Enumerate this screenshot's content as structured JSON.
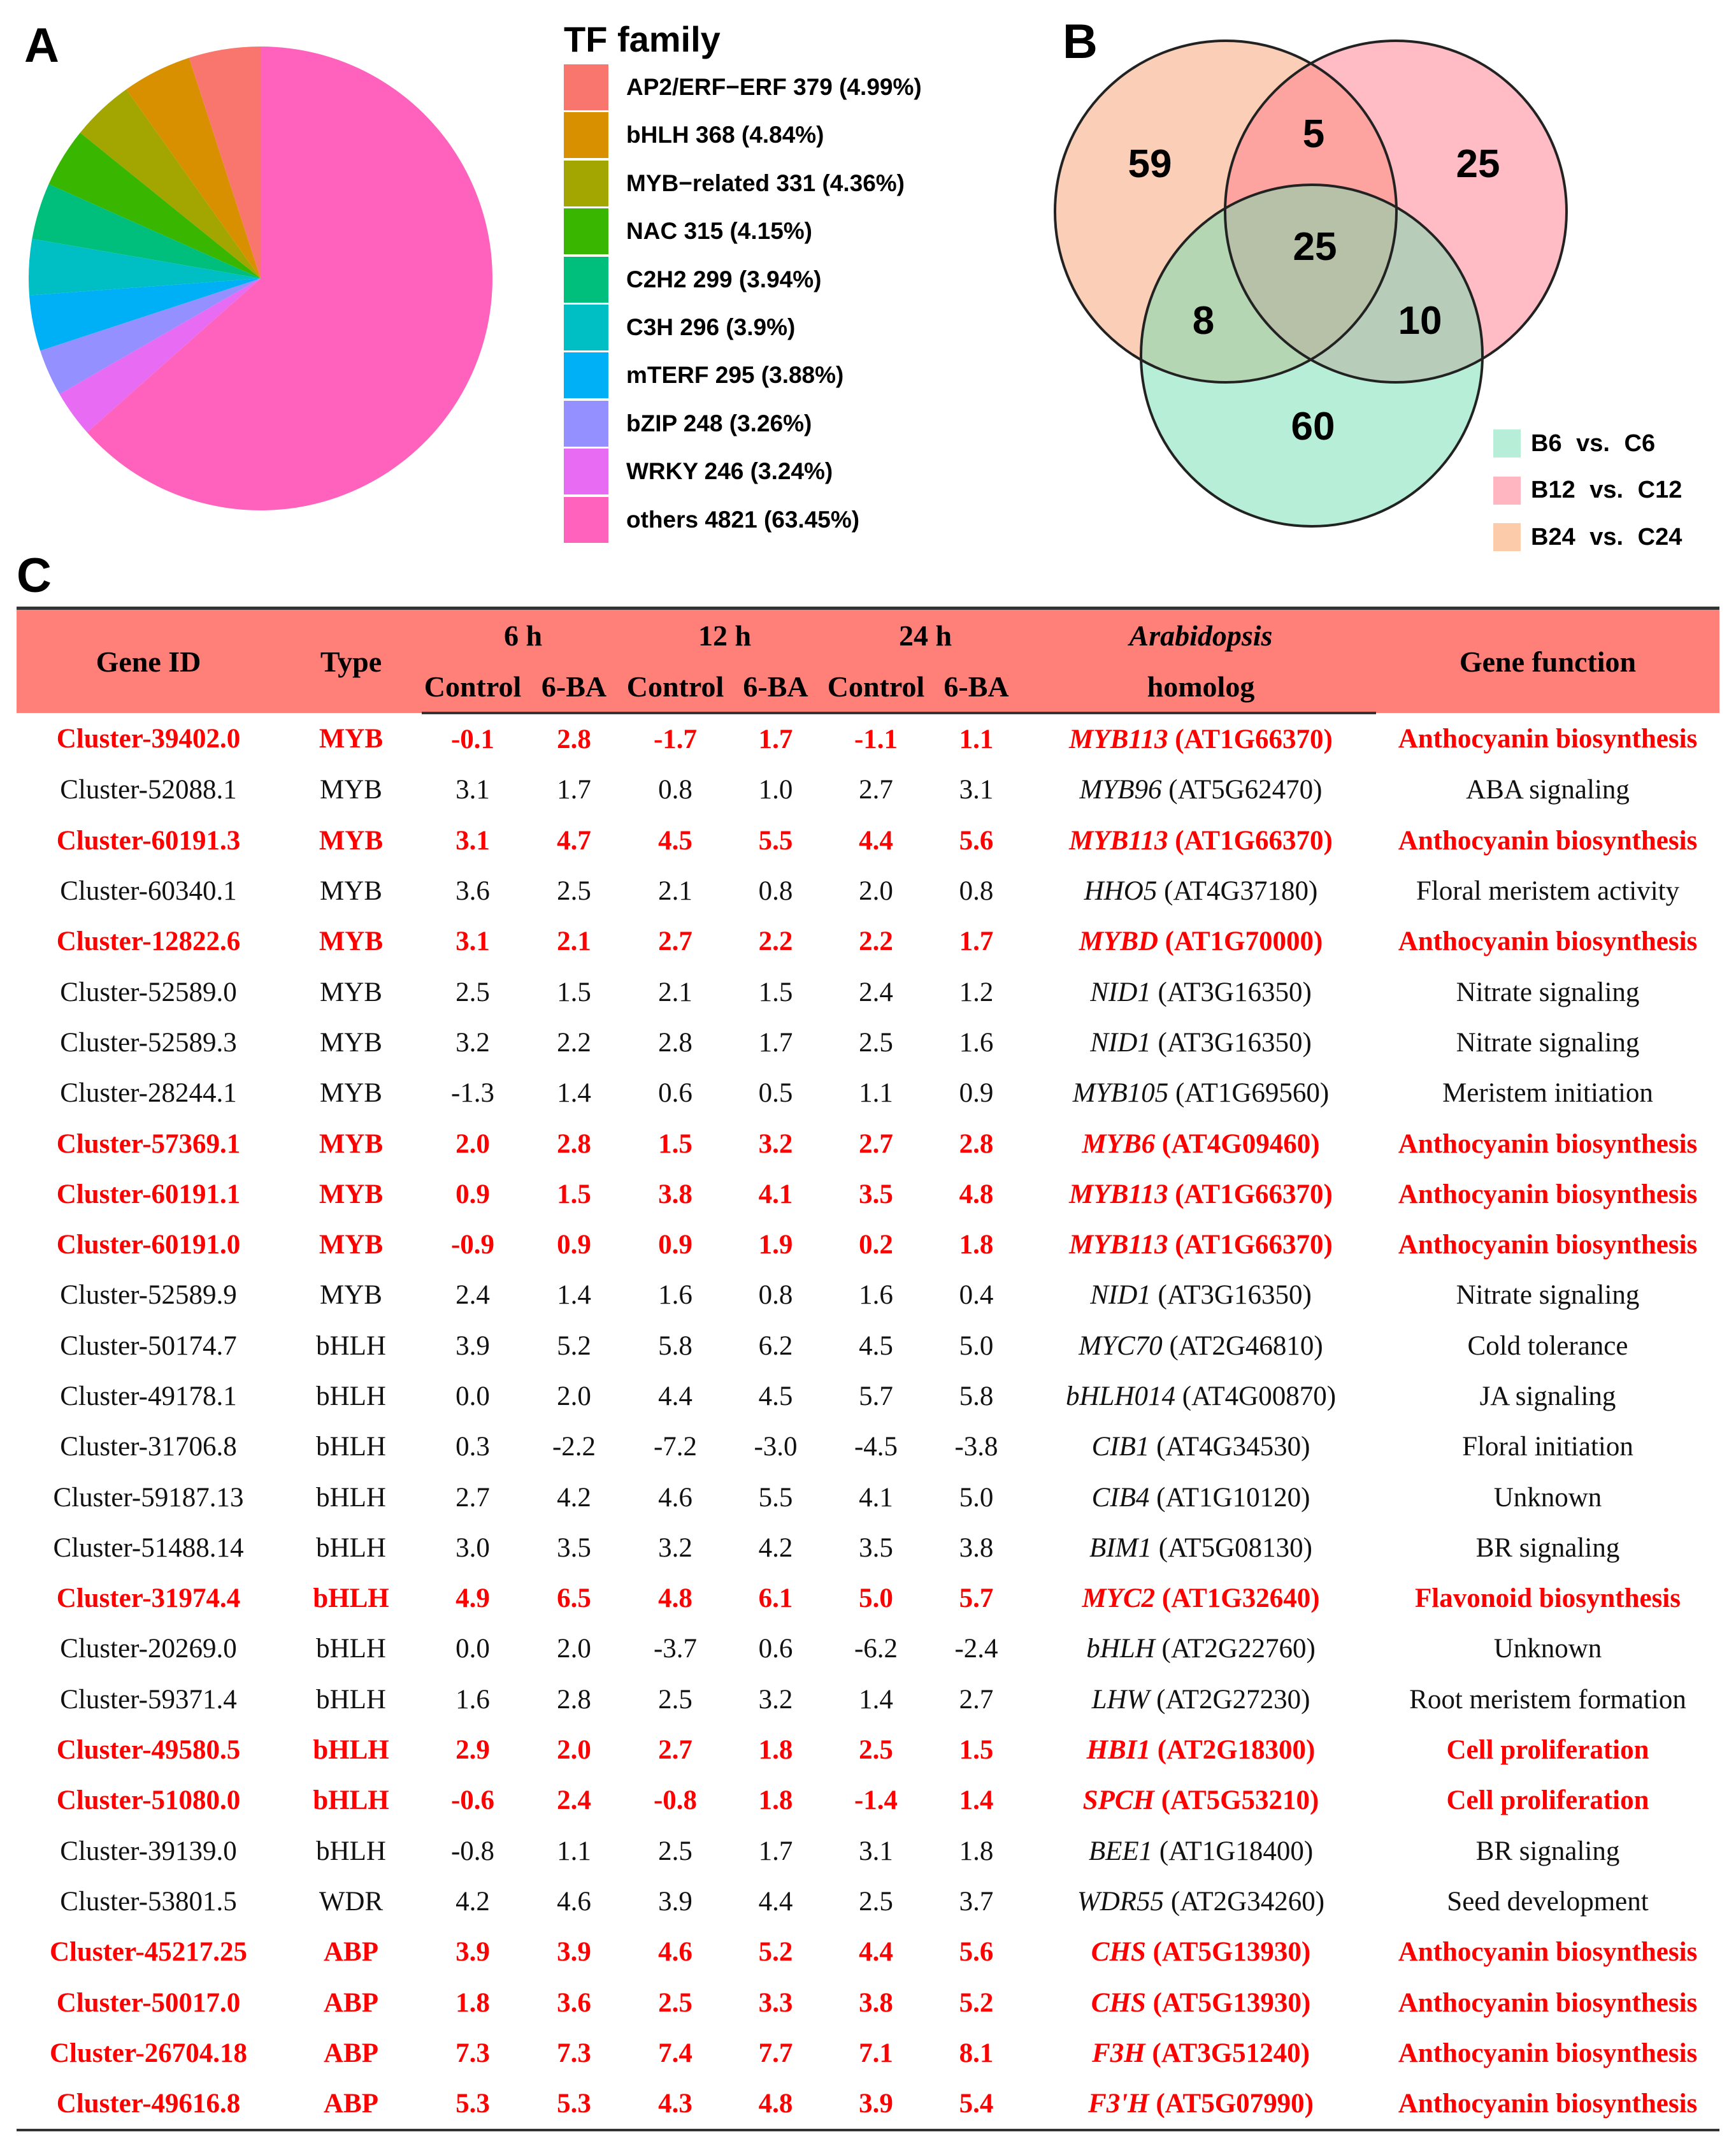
{
  "panels": {
    "a": "A",
    "b": "B",
    "c": "C"
  },
  "chart_data": [
    {
      "type": "pie",
      "legend_title": "TF family",
      "legend_position": "right",
      "slices": [
        {
          "name": "AP2/ERF−ERF",
          "value": 379,
          "percent": "4.99%",
          "label": "AP2/ERF−ERF 379 (4.99%)",
          "color": "#F8766D"
        },
        {
          "name": "bHLH",
          "value": 368,
          "percent": "4.84%",
          "label": "bHLH 368 (4.84%)",
          "color": "#D89000"
        },
        {
          "name": "MYB-related",
          "value": 331,
          "percent": "4.36%",
          "label": "MYB−related 331 (4.36%)",
          "color": "#A3A500"
        },
        {
          "name": "NAC",
          "value": 315,
          "percent": "4.15%",
          "label": "NAC 315 (4.15%)",
          "color": "#39B600"
        },
        {
          "name": "C2H2",
          "value": 299,
          "percent": "3.94%",
          "label": "C2H2 299 (3.94%)",
          "color": "#00BF7D"
        },
        {
          "name": "C3H",
          "value": 296,
          "percent": "3.9%",
          "label": "C3H 296 (3.9%)",
          "color": "#00BFC4"
        },
        {
          "name": "mTERF",
          "value": 295,
          "percent": "3.88%",
          "label": "mTERF 295 (3.88%)",
          "color": "#00B0F6"
        },
        {
          "name": "bZIP",
          "value": 248,
          "percent": "3.26%",
          "label": "bZIP 248 (3.26%)",
          "color": "#9590FF"
        },
        {
          "name": "WRKY",
          "value": 246,
          "percent": "3.24%",
          "label": "WRKY 246 (3.24%)",
          "color": "#E76BF3"
        },
        {
          "name": "others",
          "value": 4821,
          "percent": "63.45%",
          "label": "others 4821 (63.45%)",
          "color": "#FF62BC"
        }
      ]
    },
    {
      "type": "venn",
      "sets": [
        {
          "name": "B6 vs. C6",
          "color": "#6FDDB0",
          "swatch": "#B6EED8"
        },
        {
          "name": "B12 vs. C12",
          "color": "#FF7A8C",
          "swatch": "#FFB6C0"
        },
        {
          "name": "B24 vs. C24",
          "color": "#F7A070",
          "swatch": "#FCCBAA"
        }
      ],
      "regions": {
        "only_B24": "59",
        "B24_B12": "5",
        "only_B12": "25",
        "all_three": "25",
        "B24_B6": "8",
        "B12_B6": "10",
        "only_B6": "60"
      },
      "legend_position": "bottom-right"
    }
  ],
  "table": {
    "header_color": "#FF7F79",
    "highlight_color": "#FF0000",
    "headers": {
      "gene_id": "Gene ID",
      "type": "Type",
      "h6": "6 h",
      "h12": "12 h",
      "h24": "24 h",
      "control": "Control",
      "ba": "6-BA",
      "homolog_top": "Arabidopsis",
      "homolog_bottom": "homolog",
      "function": "Gene function"
    },
    "rows": [
      {
        "id": "Cluster-39402.0",
        "type": "MYB",
        "v": [
          "-0.1",
          "2.8",
          "-1.7",
          "1.7",
          "-1.1",
          "1.1"
        ],
        "gene": "MYB113",
        "at": " (AT1G66370)",
        "fn": "Anthocyanin biosynthesis",
        "hl": true
      },
      {
        "id": "Cluster-52088.1",
        "type": "MYB",
        "v": [
          "3.1",
          "1.7",
          "0.8",
          "1.0",
          "2.7",
          "3.1"
        ],
        "gene": "MYB96",
        "at": " (AT5G62470)",
        "fn": "ABA signaling",
        "hl": false
      },
      {
        "id": "Cluster-60191.3",
        "type": "MYB",
        "v": [
          "3.1",
          "4.7",
          "4.5",
          "5.5",
          "4.4",
          "5.6"
        ],
        "gene": "MYB113",
        "at": " (AT1G66370)",
        "fn": "Anthocyanin biosynthesis",
        "hl": true
      },
      {
        "id": "Cluster-60340.1",
        "type": "MYB",
        "v": [
          "3.6",
          "2.5",
          "2.1",
          "0.8",
          "2.0",
          "0.8"
        ],
        "gene": "HHO5",
        "at": " (AT4G37180)",
        "fn": "Floral meristem activity",
        "hl": false
      },
      {
        "id": "Cluster-12822.6",
        "type": "MYB",
        "v": [
          "3.1",
          "2.1",
          "2.7",
          "2.2",
          "2.2",
          "1.7"
        ],
        "gene": "MYBD",
        "at": " (AT1G70000)",
        "fn": "Anthocyanin biosynthesis",
        "hl": true
      },
      {
        "id": "Cluster-52589.0",
        "type": "MYB",
        "v": [
          "2.5",
          "1.5",
          "2.1",
          "1.5",
          "2.4",
          "1.2"
        ],
        "gene": "NID1",
        "at": " (AT3G16350)",
        "fn": "Nitrate signaling",
        "hl": false
      },
      {
        "id": "Cluster-52589.3",
        "type": "MYB",
        "v": [
          "3.2",
          "2.2",
          "2.8",
          "1.7",
          "2.5",
          "1.6"
        ],
        "gene": "NID1",
        "at": " (AT3G16350)",
        "fn": "Nitrate signaling",
        "hl": false
      },
      {
        "id": "Cluster-28244.1",
        "type": "MYB",
        "v": [
          "-1.3",
          "1.4",
          "0.6",
          "0.5",
          "1.1",
          "0.9"
        ],
        "gene": "MYB105",
        "at": " (AT1G69560)",
        "fn": "Meristem initiation",
        "hl": false
      },
      {
        "id": "Cluster-57369.1",
        "type": "MYB",
        "v": [
          "2.0",
          "2.8",
          "1.5",
          "3.2",
          "2.7",
          "2.8"
        ],
        "gene": "MYB6",
        "at": " (AT4G09460)",
        "fn": "Anthocyanin biosynthesis",
        "hl": true
      },
      {
        "id": "Cluster-60191.1",
        "type": "MYB",
        "v": [
          "0.9",
          "1.5",
          "3.8",
          "4.1",
          "3.5",
          "4.8"
        ],
        "gene": "MYB113",
        "at": " (AT1G66370)",
        "fn": "Anthocyanin biosynthesis",
        "hl": true
      },
      {
        "id": "Cluster-60191.0",
        "type": "MYB",
        "v": [
          "-0.9",
          "0.9",
          "0.9",
          "1.9",
          "0.2",
          "1.8"
        ],
        "gene": "MYB113",
        "at": " (AT1G66370)",
        "fn": "Anthocyanin biosynthesis",
        "hl": true
      },
      {
        "id": "Cluster-52589.9",
        "type": "MYB",
        "v": [
          "2.4",
          "1.4",
          "1.6",
          "0.8",
          "1.6",
          "0.4"
        ],
        "gene": "NID1",
        "at": " (AT3G16350)",
        "fn": "Nitrate signaling",
        "hl": false
      },
      {
        "id": "Cluster-50174.7",
        "type": "bHLH",
        "v": [
          "3.9",
          "5.2",
          "5.8",
          "6.2",
          "4.5",
          "5.0"
        ],
        "gene": "MYC70",
        "at": " (AT2G46810)",
        "fn": "Cold tolerance",
        "hl": false
      },
      {
        "id": "Cluster-49178.1",
        "type": "bHLH",
        "v": [
          "0.0",
          "2.0",
          "4.4",
          "4.5",
          "5.7",
          "5.8"
        ],
        "gene": "bHLH014",
        "at": " (AT4G00870)",
        "fn": "JA signaling",
        "hl": false
      },
      {
        "id": "Cluster-31706.8",
        "type": "bHLH",
        "v": [
          "0.3",
          "-2.2",
          "-7.2",
          "-3.0",
          "-4.5",
          "-3.8"
        ],
        "gene": "CIB1",
        "at": " (AT4G34530)",
        "fn": "Floral initiation",
        "hl": false
      },
      {
        "id": "Cluster-59187.13",
        "type": "bHLH",
        "v": [
          "2.7",
          "4.2",
          "4.6",
          "5.5",
          "4.1",
          "5.0"
        ],
        "gene": "CIB4",
        "at": " (AT1G10120)",
        "fn": "Unknown",
        "hl": false
      },
      {
        "id": "Cluster-51488.14",
        "type": "bHLH",
        "v": [
          "3.0",
          "3.5",
          "3.2",
          "4.2",
          "3.5",
          "3.8"
        ],
        "gene": "BIM1",
        "at": " (AT5G08130)",
        "fn": "BR signaling",
        "hl": false
      },
      {
        "id": "Cluster-31974.4",
        "type": "bHLH",
        "v": [
          "4.9",
          "6.5",
          "4.8",
          "6.1",
          "5.0",
          "5.7"
        ],
        "gene": "MYC2",
        "at": " (AT1G32640)",
        "fn": "Flavonoid biosynthesis",
        "hl": true
      },
      {
        "id": "Cluster-20269.0",
        "type": "bHLH",
        "v": [
          "0.0",
          "2.0",
          "-3.7",
          "0.6",
          "-6.2",
          "-2.4"
        ],
        "gene": "bHLH",
        "at": " (AT2G22760)",
        "fn": "Unknown",
        "hl": false
      },
      {
        "id": "Cluster-59371.4",
        "type": "bHLH",
        "v": [
          "1.6",
          "2.8",
          "2.5",
          "3.2",
          "1.4",
          "2.7"
        ],
        "gene": "LHW",
        "at": " (AT2G27230)",
        "fn": "Root meristem formation",
        "hl": false
      },
      {
        "id": "Cluster-49580.5",
        "type": "bHLH",
        "v": [
          "2.9",
          "2.0",
          "2.7",
          "1.8",
          "2.5",
          "1.5"
        ],
        "gene": "HBI1",
        "at": " (AT2G18300)",
        "fn": "Cell proliferation",
        "hl": true
      },
      {
        "id": "Cluster-51080.0",
        "type": "bHLH",
        "v": [
          "-0.6",
          "2.4",
          "-0.8",
          "1.8",
          "-1.4",
          "1.4"
        ],
        "gene": "SPCH",
        "at": " (AT5G53210)",
        "fn": "Cell proliferation",
        "hl": true
      },
      {
        "id": "Cluster-39139.0",
        "type": "bHLH",
        "v": [
          "-0.8",
          "1.1",
          "2.5",
          "1.7",
          "3.1",
          "1.8"
        ],
        "gene": "BEE1",
        "at": " (AT1G18400)",
        "fn": "BR signaling",
        "hl": false
      },
      {
        "id": "Cluster-53801.5",
        "type": "WDR",
        "v": [
          "4.2",
          "4.6",
          "3.9",
          "4.4",
          "2.5",
          "3.7"
        ],
        "gene": "WDR55",
        "at": " (AT2G34260)",
        "fn": "Seed development",
        "hl": false
      },
      {
        "id": "Cluster-45217.25",
        "type": "ABP",
        "v": [
          "3.9",
          "3.9",
          "4.6",
          "5.2",
          "4.4",
          "5.6"
        ],
        "gene": "CHS",
        "at": " (AT5G13930)",
        "fn": "Anthocyanin biosynthesis",
        "hl": true
      },
      {
        "id": "Cluster-50017.0",
        "type": "ABP",
        "v": [
          "1.8",
          "3.6",
          "2.5",
          "3.3",
          "3.8",
          "5.2"
        ],
        "gene": "CHS",
        "at": " (AT5G13930)",
        "fn": "Anthocyanin biosynthesis",
        "hl": true
      },
      {
        "id": "Cluster-26704.18",
        "type": "ABP",
        "v": [
          "7.3",
          "7.3",
          "7.4",
          "7.7",
          "7.1",
          "8.1"
        ],
        "gene": "F3H",
        "at": " (AT3G51240)",
        "fn": "Anthocyanin biosynthesis",
        "hl": true
      },
      {
        "id": "Cluster-49616.8",
        "type": "ABP",
        "v": [
          "5.3",
          "5.3",
          "4.3",
          "4.8",
          "3.9",
          "5.4"
        ],
        "gene": "F3'H",
        "at": " (AT5G07990)",
        "fn": "Anthocyanin biosynthesis",
        "hl": true
      }
    ]
  }
}
